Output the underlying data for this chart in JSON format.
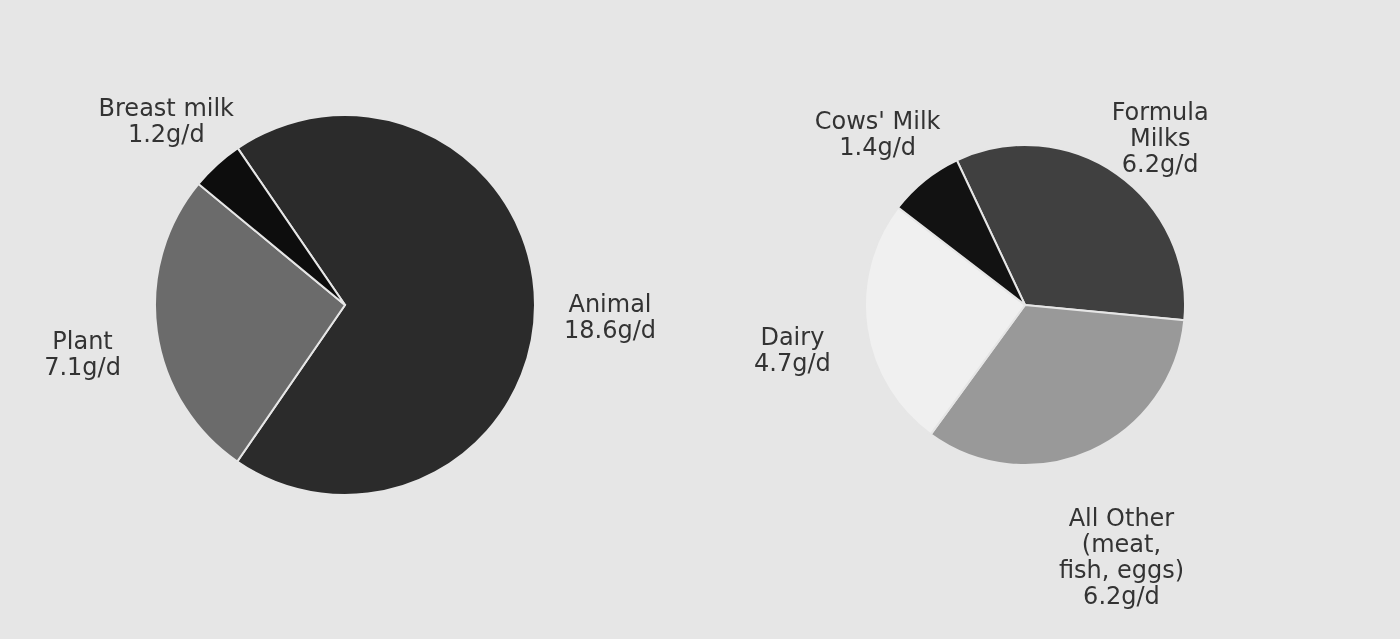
{
  "chart_data": [
    {
      "type": "pie",
      "categories": [
        "Animal",
        "Plant",
        "Breast milk"
      ],
      "values": [
        18.6,
        7.1,
        1.2
      ],
      "value_labels": [
        "18.6g/d",
        "7.1g/d",
        "1.2g/d"
      ],
      "colors": [
        "#2b2b2b",
        "#6b6b6b",
        "#0d0d0d"
      ]
    },
    {
      "type": "pie",
      "categories": [
        "Formula Milks",
        "All Other (meat, fish, eggs)",
        "Dairy",
        "Cows' Milk"
      ],
      "values": [
        6.2,
        6.2,
        4.7,
        1.4
      ],
      "value_labels": [
        "6.2g/d",
        "6.2g/d",
        "4.7g/d",
        "1.4g/d"
      ],
      "colors": [
        "#404040",
        "#999999",
        "#f0f0f0",
        "#121212"
      ]
    }
  ]
}
